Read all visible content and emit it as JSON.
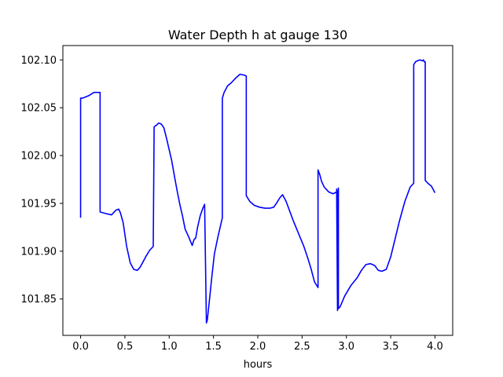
{
  "chart_data": {
    "type": "line",
    "title": "Water Depth h at gauge 130",
    "xlabel": "hours",
    "ylabel": "",
    "xlim": [
      -0.2,
      4.2
    ],
    "ylim": [
      101.812,
      102.115
    ],
    "xticks": [
      0.0,
      0.5,
      1.0,
      1.5,
      2.0,
      2.5,
      3.0,
      3.5,
      4.0
    ],
    "xtick_labels": [
      "0.0",
      "0.5",
      "1.0",
      "1.5",
      "2.0",
      "2.5",
      "3.0",
      "3.5",
      "4.0"
    ],
    "yticks": [
      101.85,
      101.9,
      101.95,
      102.0,
      102.05,
      102.1
    ],
    "ytick_labels": [
      "101.85",
      "101.90",
      "101.95",
      "102.00",
      "102.05",
      "102.10"
    ],
    "grid": false,
    "series": [
      {
        "color": "#0000ff",
        "x": [
          0.0,
          0.0,
          0.02,
          0.05,
          0.1,
          0.15,
          0.19,
          0.22,
          0.22,
          0.26,
          0.3,
          0.35,
          0.4,
          0.43,
          0.45,
          0.48,
          0.52,
          0.56,
          0.6,
          0.64,
          0.67,
          0.7,
          0.74,
          0.78,
          0.82,
          0.83,
          0.83,
          0.86,
          0.88,
          0.91,
          0.94,
          0.97,
          1.0,
          1.03,
          1.06,
          1.09,
          1.12,
          1.15,
          1.18,
          1.22,
          1.26,
          1.28,
          1.3,
          1.32,
          1.35,
          1.38,
          1.4,
          1.42,
          1.43,
          1.43,
          1.45,
          1.48,
          1.51,
          1.55,
          1.58,
          1.6,
          1.6,
          1.62,
          1.66,
          1.7,
          1.75,
          1.8,
          1.85,
          1.87,
          1.87,
          1.91,
          1.96,
          2.02,
          2.08,
          2.14,
          2.18,
          2.21,
          2.25,
          2.28,
          2.32,
          2.36,
          2.4,
          2.44,
          2.48,
          2.52,
          2.56,
          2.6,
          2.64,
          2.68,
          2.68,
          2.7,
          2.72,
          2.75,
          2.8,
          2.85,
          2.89,
          2.89,
          2.9,
          2.9,
          2.91,
          2.91,
          2.93,
          2.98,
          3.05,
          3.12,
          3.17,
          3.22,
          3.27,
          3.32,
          3.36,
          3.4,
          3.45,
          3.5,
          3.55,
          3.6,
          3.66,
          3.72,
          3.76,
          3.76,
          3.78,
          3.8,
          3.83,
          3.86,
          3.87,
          3.88,
          3.89,
          3.89,
          3.92,
          3.96,
          4.0
        ],
        "y": [
          101.935,
          102.06,
          102.06,
          102.061,
          102.063,
          102.066,
          102.066,
          102.066,
          101.941,
          101.94,
          101.939,
          101.938,
          101.943,
          101.944,
          101.94,
          101.93,
          101.905,
          101.888,
          101.881,
          101.88,
          101.883,
          101.888,
          101.895,
          101.901,
          101.905,
          102.03,
          102.03,
          102.032,
          102.034,
          102.033,
          102.029,
          102.018,
          102.006,
          101.994,
          101.978,
          101.963,
          101.949,
          101.937,
          101.923,
          101.915,
          101.906,
          101.912,
          101.914,
          101.925,
          101.937,
          101.945,
          101.949,
          101.825,
          101.828,
          101.828,
          101.845,
          101.872,
          101.897,
          101.915,
          101.927,
          101.935,
          102.06,
          102.066,
          102.073,
          102.076,
          102.081,
          102.085,
          102.084,
          102.083,
          101.958,
          101.952,
          101.948,
          101.946,
          101.945,
          101.945,
          101.946,
          101.95,
          101.956,
          101.959,
          101.952,
          101.942,
          101.932,
          101.923,
          101.914,
          101.905,
          101.894,
          101.882,
          101.868,
          101.862,
          101.985,
          101.98,
          101.973,
          101.967,
          101.962,
          101.96,
          101.962,
          101.965,
          101.838,
          101.96,
          101.966,
          101.84,
          101.842,
          101.853,
          101.864,
          101.872,
          101.88,
          101.886,
          101.887,
          101.885,
          101.88,
          101.879,
          101.881,
          101.894,
          101.913,
          101.932,
          101.952,
          101.967,
          101.971,
          102.095,
          102.098,
          102.099,
          102.1,
          102.099,
          102.1,
          102.098,
          102.098,
          101.974,
          101.971,
          101.968,
          101.961
        ]
      }
    ]
  }
}
